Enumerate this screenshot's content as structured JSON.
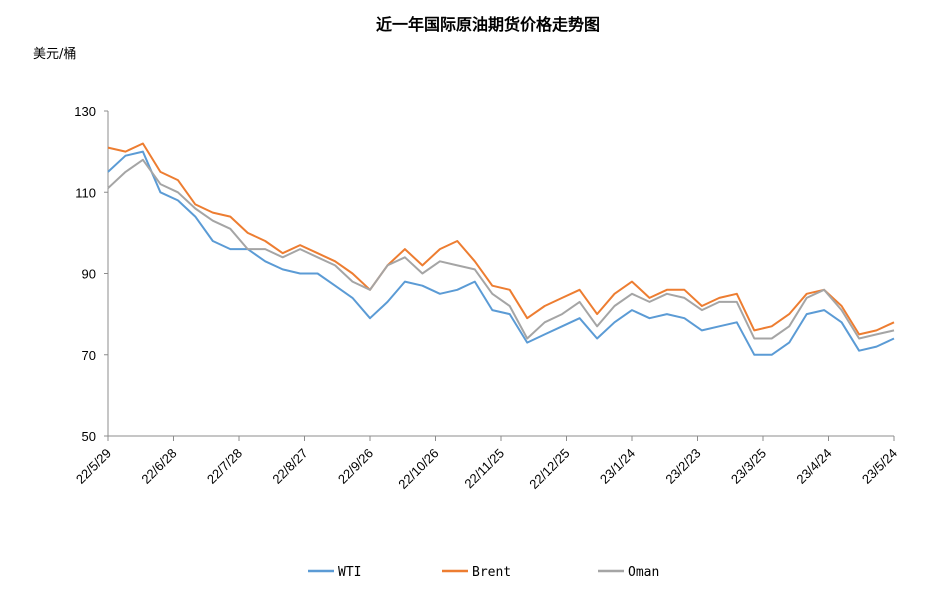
{
  "chart_data": {
    "type": "line",
    "title": "近一年国际原油期货价格走势图",
    "ylabel": "美元/桶",
    "xlabel": "",
    "ylim": [
      50,
      130
    ],
    "yticks": [
      "50",
      "70",
      "90",
      "110",
      "130"
    ],
    "xticks": [
      "22/5/29",
      "22/6/28",
      "22/7/28",
      "22/8/27",
      "22/9/26",
      "22/10/26",
      "22/11/25",
      "22/12/25",
      "23/1/24",
      "23/2/23",
      "23/3/25",
      "23/4/24",
      "23/5/24"
    ],
    "x_days": [
      0,
      8,
      16,
      24,
      32,
      40,
      48,
      56,
      64,
      72,
      80,
      88,
      96,
      104,
      112,
      120,
      128,
      136,
      144,
      152,
      160,
      168,
      176,
      184,
      192,
      200,
      208,
      216,
      224,
      232,
      240,
      248,
      256,
      264,
      272,
      280,
      288,
      296,
      304,
      312,
      320,
      328,
      336,
      344,
      352,
      360
    ],
    "grid": false,
    "legend_position": "bottom",
    "series": [
      {
        "name": "WTI",
        "color": "#5B9BD5",
        "values": [
          115,
          119,
          120,
          110,
          108,
          104,
          98,
          96,
          96,
          93,
          91,
          90,
          90,
          87,
          84,
          79,
          83,
          88,
          87,
          85,
          86,
          88,
          81,
          80,
          73,
          75,
          77,
          79,
          74,
          78,
          81,
          79,
          80,
          79,
          76,
          77,
          78,
          70,
          70,
          73,
          80,
          81,
          78,
          71,
          72,
          74
        ]
      },
      {
        "name": "Brent",
        "color": "#ED7D31",
        "values": [
          121,
          120,
          122,
          115,
          113,
          107,
          105,
          104,
          100,
          98,
          95,
          97,
          95,
          93,
          90,
          86,
          92,
          96,
          92,
          96,
          98,
          93,
          87,
          86,
          79,
          82,
          84,
          86,
          80,
          85,
          88,
          84,
          86,
          86,
          82,
          84,
          85,
          76,
          77,
          80,
          85,
          86,
          82,
          75,
          76,
          78
        ]
      },
      {
        "name": "Oman",
        "color": "#A5A5A5",
        "values": [
          111,
          115,
          118,
          112,
          110,
          106,
          103,
          101,
          96,
          96,
          94,
          96,
          94,
          92,
          88,
          86,
          92,
          94,
          90,
          93,
          92,
          91,
          85,
          82,
          74,
          78,
          80,
          83,
          77,
          82,
          85,
          83,
          85,
          84,
          81,
          83,
          83,
          74,
          74,
          77,
          84,
          86,
          81,
          74,
          75,
          76
        ]
      }
    ]
  }
}
